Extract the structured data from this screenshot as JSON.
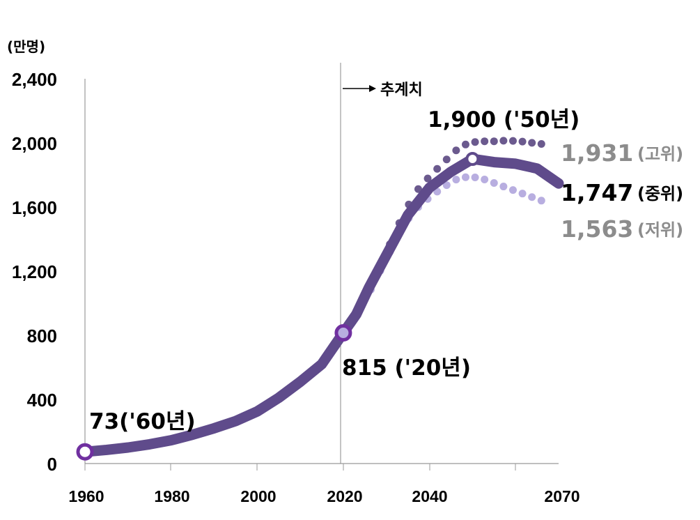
{
  "chart_data": {
    "type": "line",
    "unit_label": "(만명)",
    "y_ticks": [
      "2,400",
      "2,000",
      "1,600",
      "1,200",
      "800",
      "400",
      "0"
    ],
    "x_ticks": [
      "1960",
      "1980",
      "2000",
      "2020",
      "2040",
      "2070"
    ],
    "x_tick_values": [
      1960,
      1980,
      2000,
      2020,
      2040,
      2070
    ],
    "xlim": [
      1960,
      2070
    ],
    "ylim": [
      0,
      2400
    ],
    "projection_start": 2020,
    "projection_label": "추계치",
    "colors": {
      "medium": "#5f4b8b",
      "high": "#6b5a8e",
      "low": "#b8aee0",
      "marker_ring": "#7030a0"
    },
    "series": [
      {
        "name": "중위",
        "style": "solid",
        "points": [
          [
            1960,
            73
          ],
          [
            1965,
            85
          ],
          [
            1970,
            100
          ],
          [
            1975,
            120
          ],
          [
            1980,
            145
          ],
          [
            1985,
            180
          ],
          [
            1990,
            220
          ],
          [
            1995,
            265
          ],
          [
            2000,
            325
          ],
          [
            2005,
            410
          ],
          [
            2010,
            510
          ],
          [
            2015,
            620
          ],
          [
            2020,
            815
          ],
          [
            2023,
            930
          ],
          [
            2026,
            1100
          ],
          [
            2030,
            1300
          ],
          [
            2035,
            1550
          ],
          [
            2040,
            1720
          ],
          [
            2045,
            1820
          ],
          [
            2050,
            1900
          ],
          [
            2055,
            1880
          ],
          [
            2060,
            1870
          ],
          [
            2065,
            1840
          ],
          [
            2070,
            1747
          ]
        ]
      },
      {
        "name": "고위",
        "style": "dotted",
        "points": [
          [
            2020,
            815
          ],
          [
            2022,
            900
          ],
          [
            2025,
            1050
          ],
          [
            2028,
            1200
          ],
          [
            2031,
            1380
          ],
          [
            2034,
            1560
          ],
          [
            2037,
            1700
          ],
          [
            2040,
            1790
          ],
          [
            2043,
            1870
          ],
          [
            2046,
            1950
          ],
          [
            2049,
            2000
          ],
          [
            2052,
            2010
          ],
          [
            2055,
            2010
          ],
          [
            2058,
            2015
          ],
          [
            2061,
            2010
          ],
          [
            2064,
            2000
          ],
          [
            2067,
            1990
          ],
          [
            2070,
            1931
          ]
        ]
      },
      {
        "name": "저위",
        "style": "dotted",
        "points": [
          [
            2020,
            815
          ],
          [
            2022,
            900
          ],
          [
            2025,
            1010
          ],
          [
            2028,
            1170
          ],
          [
            2031,
            1330
          ],
          [
            2034,
            1490
          ],
          [
            2037,
            1590
          ],
          [
            2040,
            1660
          ],
          [
            2043,
            1720
          ],
          [
            2046,
            1770
          ],
          [
            2049,
            1790
          ],
          [
            2052,
            1780
          ],
          [
            2055,
            1750
          ],
          [
            2058,
            1720
          ],
          [
            2061,
            1690
          ],
          [
            2064,
            1660
          ],
          [
            2067,
            1630
          ],
          [
            2070,
            1563
          ]
        ]
      }
    ],
    "markers": [
      {
        "x": 1960,
        "y": 73,
        "style": "ring"
      },
      {
        "x": 2020,
        "y": 815,
        "style": "ring-filled"
      },
      {
        "x": 2050,
        "y": 1900,
        "style": "white-dot"
      }
    ],
    "annotations": {
      "start": "73('60년)",
      "base": "815 ('20년)",
      "peak": "1,900 ('50년)",
      "high_value": "1,931",
      "high_label": "(고위)",
      "medium_value": "1,747",
      "medium_label": "(중위)",
      "low_value": "1,563",
      "low_label": "(저위)"
    }
  }
}
